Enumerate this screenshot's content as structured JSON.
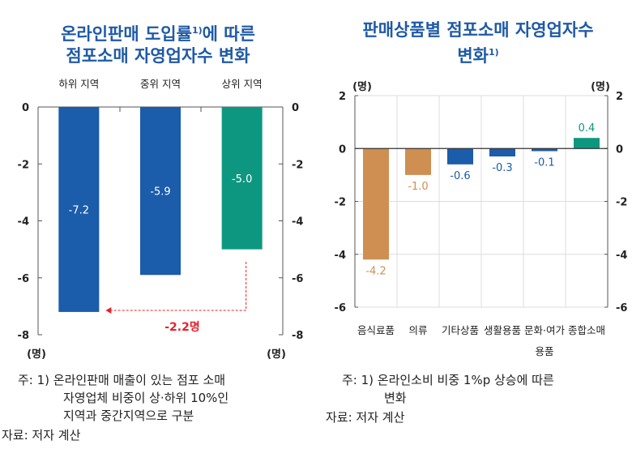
{
  "chart_data": [
    {
      "type": "bar",
      "title": "온라인판매 도입률",
      "title_sup": "1)",
      "title_rest": "에 따른",
      "title_line2": "점포소매 자영업자수 변화",
      "categories": [
        "하위 지역",
        "중위 지역",
        "상위 지역"
      ],
      "values": [
        -7.2,
        -5.9,
        -5.0
      ],
      "data_labels": [
        "-7.2",
        "-5.9",
        "-5.0"
      ],
      "colors": [
        "#1b5cab",
        "#1b5cab",
        "#0e9780"
      ],
      "ylim": [
        -8,
        0
      ],
      "yticks": [
        "0",
        "-2",
        "-4",
        "-6",
        "-8"
      ],
      "y_unit_left": "(명)",
      "y_unit_right": "(명)",
      "annotation": "-2.2명",
      "annotation_color": "#e8202a",
      "grid": false
    },
    {
      "type": "bar",
      "title": "판매상품별 점포소매 자영업자수",
      "title_line2": "변화",
      "title_sup": "1)",
      "categories": [
        "음식료품",
        "의류",
        "기타상품",
        "생활용품",
        "문화·여가 용품",
        "종합소매"
      ],
      "category_lines": [
        [
          "음식료품"
        ],
        [
          "의류"
        ],
        [
          "기타상품"
        ],
        [
          "생활용품"
        ],
        [
          "문화·여가",
          "용품"
        ],
        [
          "종합소매"
        ]
      ],
      "values": [
        -4.2,
        -1.0,
        -0.6,
        -0.3,
        -0.1,
        0.4
      ],
      "data_labels": [
        "-4.2",
        "-1.0",
        "-0.6",
        "-0.3",
        "-0.1",
        "0.4"
      ],
      "colors": [
        "#cf8f52",
        "#cf8f52",
        "#1b5cab",
        "#1b5cab",
        "#1b5cab",
        "#0e9780"
      ],
      "ylim": [
        -6,
        2
      ],
      "yticks": [
        "2",
        "0",
        "-2",
        "-4",
        "-6"
      ],
      "y_unit_left": "(명)",
      "y_unit_right": "(명)",
      "grid": true
    }
  ],
  "notes": {
    "left_note_line1": "주: 1) 온라인판매 매출이 있는 점포 소매",
    "left_note_line2": "자영업체 비중이 상·하위 10%인",
    "left_note_line3": "지역과 중간지역으로 구분",
    "left_source": "자료: 저자 계산",
    "right_note_line1": "주: 1) 온라인소비 비중 1%p 상승에 따른",
    "right_note_line2": "변화",
    "right_source": "자료: 저자 계산"
  }
}
